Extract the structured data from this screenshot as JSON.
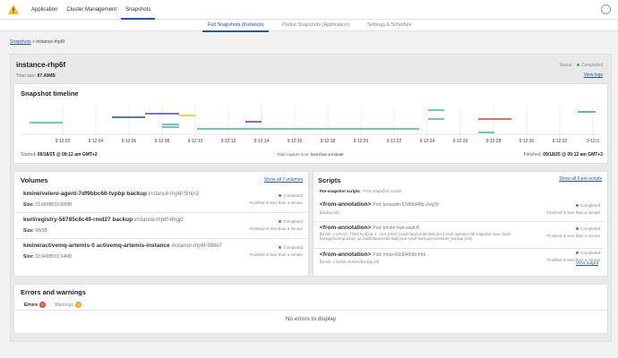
{
  "topbar": {
    "nav": [
      "Application",
      "Cluster Management",
      "Snapshots"
    ],
    "active_nav": 2
  },
  "subtabs": [
    "Full Snapshots (Instance)",
    "Partial Snapshots (Application)",
    "Settings & Schedule"
  ],
  "breadcrumb": {
    "root": "Snapshots",
    "separator": " > ",
    "current": "instance-rhp6f"
  },
  "header": {
    "title": "instance-rhp6f",
    "total_size_label": "Total size:",
    "total_size": "87.40MB",
    "status_label": "Status:",
    "status": "Completed",
    "view_logs": "View logs"
  },
  "timeline": {
    "title": "Snapshot timeline",
    "ticks": [
      "9:12:02",
      "9:12:04",
      "9:12:06",
      "9:12:08",
      "9:12:10",
      "9:12:12",
      "9:12:14",
      "9:12:16",
      "9:12:18",
      "9:12:20",
      "9:12:22",
      "9:12:24",
      "9:12:26",
      "9:12:28",
      "9:12:30",
      "9:12:32",
      "9:12:3"
    ],
    "started_label": "Started:",
    "started": "09/18/25 @ 09:12 am GMT+2",
    "capture_label": "Total capture time:",
    "capture": "less than a minute",
    "finished_label": "Finished:",
    "finished": "09/18/25 @ 09:12 am GMT+2",
    "colors": {
      "teal": "#3bb8a3",
      "navy": "#1f4e79",
      "purple": "#5b3cc4",
      "yellow": "#f2b92c",
      "red": "#d93b3b",
      "green": "#3aa457"
    }
  },
  "volumes": {
    "title": "Volumes",
    "show_all": "Show all 7 volumes",
    "size_label": "Size:",
    "items": [
      {
        "name": "kmine/velero-agent-7df9bbc66-tvpbp backup",
        "sub": "instance-rhp6f-5mjn2",
        "size": "33.88MB/33.88MB",
        "status": "Completed",
        "detail": "Finished in less than a minute"
      },
      {
        "name": "kurl/registry-58785c8c49-rmd27 backup",
        "sub": "instance-rhp6f-6hgjd",
        "size": "0B/0B",
        "status": "Completed",
        "detail": "Finished in less than a minute"
      },
      {
        "name": "kmine/activemq-artemis-0 activemq-artemis-instance",
        "sub": "instance-rhp6f-988k7",
        "size": "33.94MB/33.94MB",
        "status": "Completed",
        "detail": "Finished in less than a minute"
      }
    ]
  },
  "scripts": {
    "title": "Scripts",
    "show_all": "Show all 6 pre-scripts",
    "tabs": [
      "Pre-snapshot scripts",
      "Post-snapshot scripts"
    ],
    "items": [
      {
        "name": "<from-annotation>",
        "pod": "Pod: kotsadm-57d8bd48b-2wq7b",
        "cmd": "[backup.sh]",
        "status": "Completed",
        "detail": "Finished in less than a minute"
      },
      {
        "name": "<from-annotation>",
        "pod": "Pod: kmine-hub-vault-0",
        "cmd": "[bin/sh -c VAULT_TOKEN=$(cat -r '.root_token' /vault/data/credentials.json) vault operator raft snapshot save /vault-backup/backup.tar.gz; cp /vault/data/credentials.json /vault-backup/credentials_backup.json]",
        "status": "Completed",
        "detail": "Finished in less than a minute",
        "view_output": "View output"
      },
      {
        "name": "<from-annotation>",
        "pod": "Pod: mnio-66c64489b-frlrk",
        "cmd": "[bin/sh -c bin/sh /restore/backup.sh]",
        "status": "Completed",
        "detail": "Finished in less than a minute"
      }
    ]
  },
  "errors": {
    "title": "Errors and warnings",
    "errors_label": "Errors",
    "errors_count": "0",
    "warnings_label": "Warnings",
    "warnings_count": "0",
    "empty": "No errors to display"
  }
}
